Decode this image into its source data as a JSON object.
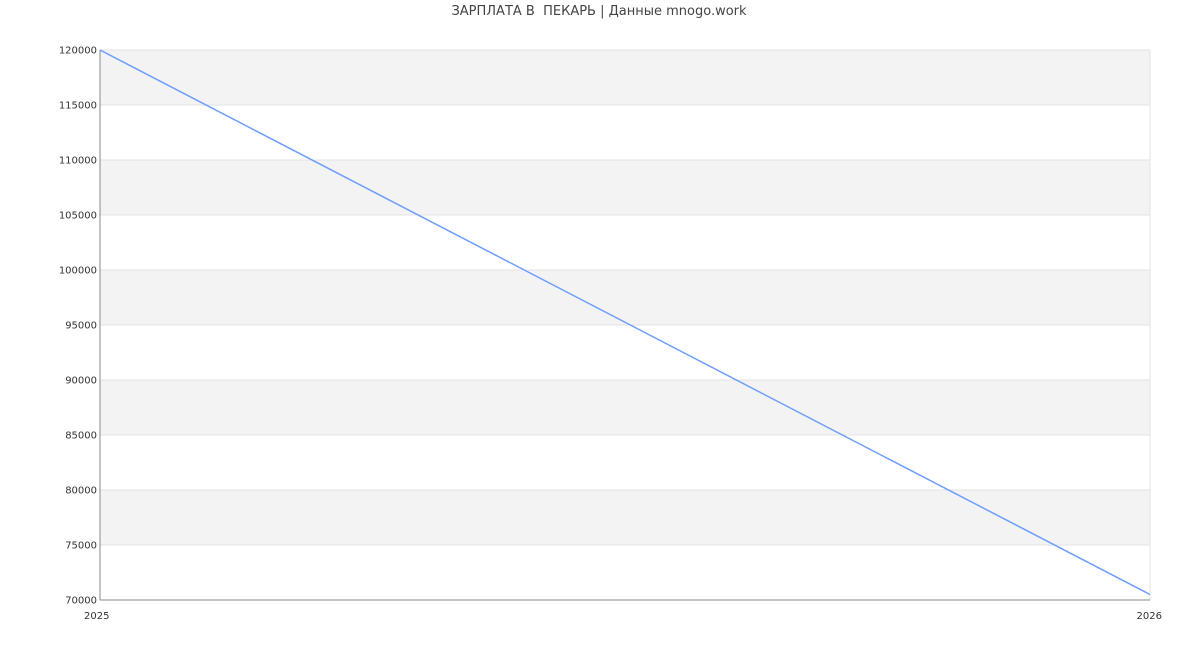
{
  "chart_data": {
    "type": "line",
    "title": "ЗАРПЛАТА В  ПЕКАРЬ | Данные mnogo.work",
    "x": [
      "2025",
      "2026"
    ],
    "series": [
      {
        "values": [
          120000,
          70500
        ]
      }
    ],
    "ylim": [
      70000,
      120000
    ],
    "yticks": [
      70000,
      75000,
      80000,
      85000,
      90000,
      95000,
      100000,
      105000,
      110000,
      115000,
      120000
    ],
    "xticks": [
      "2025",
      "2026"
    ],
    "grid": true,
    "line_color": "#6d9eff",
    "band_color": "#f3f3f3"
  }
}
